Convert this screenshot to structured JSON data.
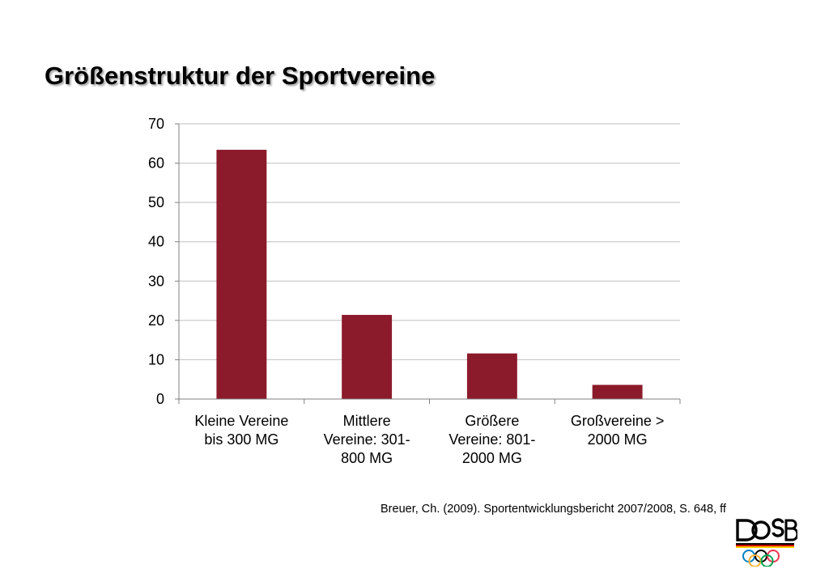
{
  "slide": {
    "title": "Größenstruktur der Sportvereine",
    "source": "Breuer, Ch. (2009). Sportentwicklungsbericht 2007/2008, S. 648, ff",
    "logo_text": "DOSB"
  },
  "colors": {
    "bar": "#8B1A2B",
    "grid": "#BFBFBF",
    "axis": "#808080",
    "text": "#000000"
  },
  "chart_data": {
    "type": "bar",
    "title": "",
    "xlabel": "",
    "ylabel": "",
    "ylim": [
      0,
      70
    ],
    "yticks": [
      0,
      10,
      20,
      30,
      40,
      50,
      60,
      70
    ],
    "grid": true,
    "legend": "none",
    "categories": [
      [
        "Kleine Vereine",
        "bis 300 MG"
      ],
      [
        "Mittlere",
        "Vereine: 301-",
        "800 MG"
      ],
      [
        "Größere",
        "Vereine: 801-",
        "2000 MG"
      ],
      [
        "Großvereine >",
        "2000 MG"
      ]
    ],
    "values": [
      63.4,
      21.4,
      11.6,
      3.6
    ]
  }
}
